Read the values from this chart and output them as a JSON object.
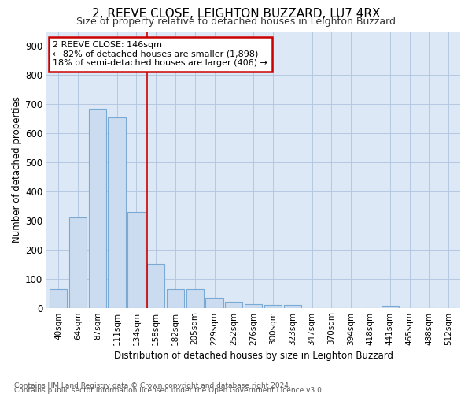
{
  "title_line1": "2, REEVE CLOSE, LEIGHTON BUZZARD, LU7 4RX",
  "title_line2": "Size of property relative to detached houses in Leighton Buzzard",
  "xlabel": "Distribution of detached houses by size in Leighton Buzzard",
  "ylabel": "Number of detached properties",
  "categories": [
    "40sqm",
    "64sqm",
    "87sqm",
    "111sqm",
    "134sqm",
    "158sqm",
    "182sqm",
    "205sqm",
    "229sqm",
    "252sqm",
    "276sqm",
    "300sqm",
    "323sqm",
    "347sqm",
    "370sqm",
    "394sqm",
    "418sqm",
    "441sqm",
    "465sqm",
    "488sqm",
    "512sqm"
  ],
  "values": [
    63,
    310,
    685,
    655,
    330,
    150,
    65,
    65,
    33,
    20,
    12,
    10,
    10,
    0,
    0,
    0,
    0,
    8,
    0,
    0,
    0
  ],
  "bar_color": "#ccdcf0",
  "bar_edge_color": "#7aaad4",
  "highlight_line_color": "#cc0000",
  "highlight_index": 5,
  "annotation_text": "2 REEVE CLOSE: 146sqm\n← 82% of detached houses are smaller (1,898)\n18% of semi-detached houses are larger (406) →",
  "annotation_box_facecolor": "#ffffff",
  "annotation_box_edgecolor": "#cc0000",
  "ylim": [
    0,
    950
  ],
  "yticks": [
    0,
    100,
    200,
    300,
    400,
    500,
    600,
    700,
    800,
    900
  ],
  "grid_color": "#b0c4de",
  "background_color": "#dce8f5",
  "footnote_line1": "Contains HM Land Registry data © Crown copyright and database right 2024.",
  "footnote_line2": "Contains public sector information licensed under the Open Government Licence v3.0."
}
